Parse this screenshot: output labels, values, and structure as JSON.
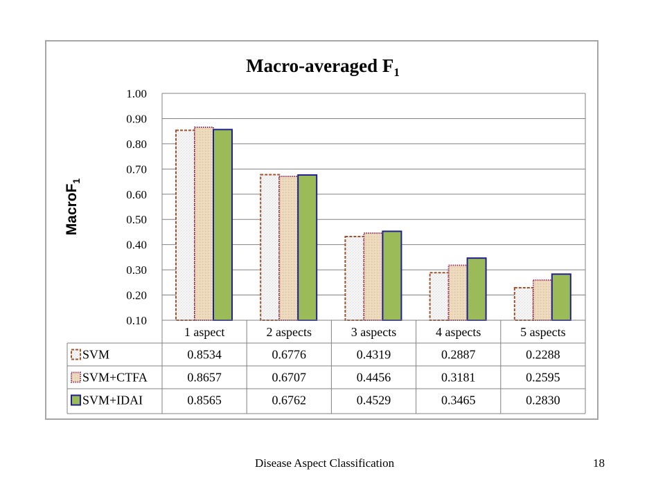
{
  "chart_data": {
    "type": "bar",
    "title": "Macro-averaged F",
    "title_subscript": "1",
    "ylabel": "MacroF",
    "ylabel_subscript": "1",
    "ylim": [
      0.1,
      1.0
    ],
    "yticks": [
      "0.10",
      "0.20",
      "0.30",
      "0.40",
      "0.50",
      "0.60",
      "0.70",
      "0.80",
      "0.90",
      "1.00"
    ],
    "categories": [
      "1 aspect",
      "2 aspects",
      "3 aspects",
      "4 aspects",
      "5 aspects"
    ],
    "grid": true,
    "legend": "data-table",
    "series": [
      {
        "name": "SVM",
        "values": [
          0.8534,
          0.6776,
          0.4319,
          0.2887,
          0.2288
        ],
        "labels": [
          "0.8534",
          "0.6776",
          "0.4319",
          "0.2887",
          "0.2288"
        ],
        "border": "#a0522d",
        "fill": "#f2f2f2",
        "pattern": "dashed"
      },
      {
        "name": "SVM+CTFA",
        "values": [
          0.8657,
          0.6707,
          0.4456,
          0.3181,
          0.2595
        ],
        "labels": [
          "0.8657",
          "0.6707",
          "0.4456",
          "0.3181",
          "0.2595"
        ],
        "border": "#993366",
        "fill": "#e8d2b0",
        "pattern": "dotted"
      },
      {
        "name": "SVM+IDAI",
        "values": [
          0.8565,
          0.6762,
          0.4529,
          0.3465,
          0.283
        ],
        "labels": [
          "0.8565",
          "0.6762",
          "0.4529",
          "0.3465",
          "0.2830"
        ],
        "border": "#1f1f8f",
        "fill": "#9bbb59",
        "pattern": "solid"
      }
    ]
  },
  "footer": {
    "title": "Disease Aspect Classification",
    "page_number": "18"
  }
}
